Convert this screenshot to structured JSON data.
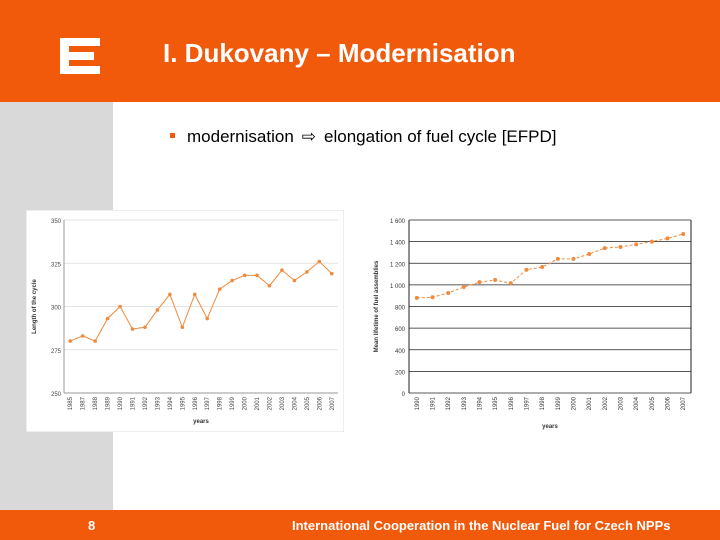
{
  "slide": {
    "title": "I. Dukovany – Modernisation",
    "bullet_text": "modernisation",
    "arrow": "⇨",
    "bullet_text2": "elongation of fuel cycle [EFPD]",
    "page_number": "8",
    "footer": "International Cooperation in the Nuclear Fuel for Czech NPPs",
    "colors": {
      "accent": "#f15a0b",
      "sidebar": "#d9d9d9",
      "series": "#f08a3c"
    },
    "icons": {
      "logo": "cez-logo-icon",
      "bullet": "square-bullet-icon"
    }
  },
  "chart_data": [
    {
      "type": "line",
      "title": "",
      "xlabel": "years",
      "ylabel": "Length of the cycle",
      "x": [
        "1985",
        "1987",
        "1988",
        "1989",
        "1990",
        "1991",
        "1992",
        "1993",
        "1994",
        "1995",
        "1996",
        "1997",
        "1998",
        "1999",
        "2000",
        "2001",
        "2002",
        "2003",
        "2004",
        "2005",
        "2006",
        "2007"
      ],
      "x_ticks": [
        "1985",
        "1987",
        "1988",
        "1989",
        "1990",
        "1991",
        "1992",
        "1993",
        "1994",
        "1995",
        "1996",
        "1997",
        "1998",
        "1999",
        "2000",
        "2001",
        "2002",
        "2003",
        "2004",
        "2005",
        "2006",
        "2007"
      ],
      "values": [
        280,
        283,
        280,
        293,
        300,
        287,
        288,
        298,
        307,
        288,
        307,
        293,
        310,
        315,
        318,
        318,
        312,
        321,
        315,
        320,
        326,
        319
      ],
      "ylim": [
        250,
        350
      ],
      "y_ticks": [
        250,
        275,
        300,
        325,
        350
      ],
      "grid": true
    },
    {
      "type": "line",
      "title": "",
      "xlabel": "years",
      "ylabel": "Mean lifetime of fuel assemblies",
      "x": [
        "1990",
        "1991",
        "1992",
        "1993",
        "1994",
        "1995",
        "1996",
        "1997",
        "1998",
        "1999",
        "2000",
        "2001",
        "2002",
        "2003",
        "2004",
        "2005",
        "2006",
        "2007"
      ],
      "values": [
        880,
        885,
        925,
        980,
        1025,
        1045,
        1015,
        1140,
        1165,
        1240,
        1240,
        1285,
        1340,
        1350,
        1375,
        1400,
        1430,
        1470
      ],
      "ylim": [
        0,
        1600
      ],
      "y_ticks": [
        0,
        200,
        400,
        600,
        800,
        1000,
        1200,
        1400,
        1600
      ],
      "y_tick_labels": [
        "0",
        "200",
        "400",
        "600",
        "800",
        "1 000",
        "1 200",
        "1 400",
        "1 600"
      ],
      "grid": true
    }
  ]
}
